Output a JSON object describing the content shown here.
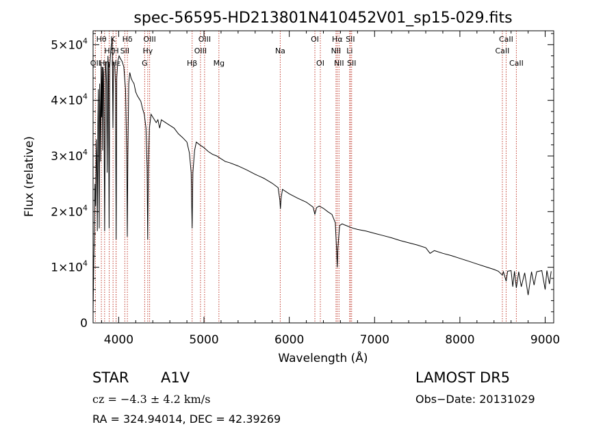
{
  "chart_data": {
    "type": "line",
    "title": "spec-56595-HD213801N410452V01_sp15-029.fits",
    "xlabel": "Wavelength (Å)",
    "ylabel": "Flux (relative)",
    "xlim": [
      3700,
      9100
    ],
    "ylim": [
      0,
      52500
    ],
    "xticks": [
      4000,
      5000,
      6000,
      7000,
      8000,
      9000
    ],
    "yticks": [
      {
        "value": 0,
        "mantissa": "0",
        "exponent": ""
      },
      {
        "value": 10000,
        "mantissa": "1×10",
        "exponent": "4"
      },
      {
        "value": 20000,
        "mantissa": "2×10",
        "exponent": "4"
      },
      {
        "value": 30000,
        "mantissa": "3×10",
        "exponent": "4"
      },
      {
        "value": 40000,
        "mantissa": "4×10",
        "exponent": "4"
      },
      {
        "value": 50000,
        "mantissa": "5×10",
        "exponent": "4"
      }
    ],
    "grid": false,
    "series": [
      {
        "color": "#000000",
        "points": [
          [
            3700,
            2000
          ],
          [
            3708,
            11000
          ],
          [
            3715,
            16000
          ],
          [
            3722,
            25000
          ],
          [
            3730,
            21000
          ],
          [
            3738,
            33000
          ],
          [
            3745,
            27000
          ],
          [
            3750,
            16500
          ],
          [
            3756,
            36000
          ],
          [
            3762,
            42000
          ],
          [
            3768,
            24000
          ],
          [
            3772,
            17000
          ],
          [
            3777,
            43000
          ],
          [
            3782,
            39000
          ],
          [
            3789,
            29000
          ],
          [
            3794,
            46500
          ],
          [
            3800,
            37000
          ],
          [
            3806,
            46000
          ],
          [
            3812,
            31000
          ],
          [
            3816,
            46000
          ],
          [
            3822,
            45000
          ],
          [
            3828,
            36000
          ],
          [
            3836,
            16500
          ],
          [
            3845,
            47000
          ],
          [
            3852,
            46000
          ],
          [
            3858,
            43000
          ],
          [
            3865,
            27000
          ],
          [
            3874,
            48000
          ],
          [
            3880,
            46000
          ],
          [
            3888,
            17000
          ],
          [
            3895,
            46000
          ],
          [
            3910,
            49500
          ],
          [
            3925,
            51000
          ],
          [
            3933,
            35000
          ],
          [
            3940,
            47000
          ],
          [
            3955,
            46000
          ],
          [
            3962,
            43000
          ],
          [
            3970,
            15000
          ],
          [
            3978,
            44000
          ],
          [
            3990,
            47000
          ],
          [
            4005,
            48000
          ],
          [
            4020,
            47500
          ],
          [
            4040,
            47000
          ],
          [
            4060,
            46000
          ],
          [
            4080,
            42000
          ],
          [
            4095,
            30000
          ],
          [
            4101,
            15500
          ],
          [
            4108,
            30000
          ],
          [
            4118,
            43000
          ],
          [
            4130,
            45000
          ],
          [
            4145,
            44000
          ],
          [
            4160,
            43500
          ],
          [
            4180,
            43000
          ],
          [
            4200,
            41500
          ],
          [
            4220,
            40800
          ],
          [
            4240,
            40300
          ],
          [
            4260,
            39800
          ],
          [
            4280,
            38500
          ],
          [
            4300,
            37500
          ],
          [
            4320,
            35000
          ],
          [
            4333,
            28000
          ],
          [
            4340,
            15000
          ],
          [
            4348,
            28000
          ],
          [
            4360,
            35000
          ],
          [
            4380,
            37500
          ],
          [
            4400,
            37000
          ],
          [
            4420,
            36500
          ],
          [
            4440,
            36000
          ],
          [
            4460,
            36500
          ],
          [
            4481,
            35000
          ],
          [
            4500,
            36500
          ],
          [
            4550,
            36000
          ],
          [
            4600,
            35500
          ],
          [
            4650,
            35000
          ],
          [
            4700,
            34000
          ],
          [
            4750,
            33300
          ],
          [
            4800,
            32500
          ],
          [
            4830,
            30500
          ],
          [
            4850,
            27000
          ],
          [
            4861,
            17000
          ],
          [
            4870,
            27000
          ],
          [
            4890,
            31000
          ],
          [
            4910,
            32500
          ],
          [
            4950,
            32000
          ],
          [
            5000,
            31500
          ],
          [
            5050,
            30800
          ],
          [
            5100,
            30300
          ],
          [
            5150,
            30000
          ],
          [
            5200,
            29500
          ],
          [
            5250,
            29000
          ],
          [
            5300,
            28800
          ],
          [
            5400,
            28200
          ],
          [
            5500,
            27500
          ],
          [
            5600,
            26700
          ],
          [
            5700,
            26000
          ],
          [
            5800,
            25100
          ],
          [
            5870,
            24300
          ],
          [
            5890,
            22000
          ],
          [
            5896,
            20500
          ],
          [
            5905,
            22500
          ],
          [
            5920,
            24000
          ],
          [
            6000,
            23200
          ],
          [
            6100,
            22400
          ],
          [
            6200,
            21700
          ],
          [
            6280,
            20800
          ],
          [
            6300,
            19500
          ],
          [
            6320,
            20700
          ],
          [
            6350,
            21000
          ],
          [
            6400,
            20600
          ],
          [
            6450,
            20000
          ],
          [
            6500,
            19500
          ],
          [
            6540,
            18000
          ],
          [
            6555,
            13000
          ],
          [
            6563,
            10000
          ],
          [
            6570,
            13500
          ],
          [
            6590,
            17500
          ],
          [
            6620,
            17800
          ],
          [
            6650,
            17600
          ],
          [
            6700,
            17300
          ],
          [
            6750,
            17000
          ],
          [
            6800,
            16800
          ],
          [
            6900,
            16500
          ],
          [
            7000,
            16100
          ],
          [
            7100,
            15700
          ],
          [
            7200,
            15300
          ],
          [
            7300,
            14800
          ],
          [
            7400,
            14400
          ],
          [
            7500,
            14000
          ],
          [
            7600,
            13500
          ],
          [
            7650,
            12500
          ],
          [
            7700,
            13000
          ],
          [
            7800,
            12500
          ],
          [
            7900,
            12100
          ],
          [
            8000,
            11600
          ],
          [
            8100,
            11100
          ],
          [
            8200,
            10600
          ],
          [
            8300,
            10100
          ],
          [
            8400,
            9600
          ],
          [
            8450,
            9300
          ],
          [
            8498,
            8600
          ],
          [
            8510,
            9200
          ],
          [
            8542,
            7500
          ],
          [
            8560,
            9300
          ],
          [
            8600,
            9400
          ],
          [
            8620,
            6500
          ],
          [
            8640,
            9300
          ],
          [
            8662,
            6300
          ],
          [
            8690,
            9200
          ],
          [
            8720,
            6500
          ],
          [
            8760,
            9000
          ],
          [
            8800,
            5000
          ],
          [
            8840,
            9200
          ],
          [
            8870,
            6800
          ],
          [
            8900,
            9200
          ],
          [
            8960,
            9400
          ],
          [
            9000,
            6000
          ],
          [
            9020,
            9400
          ],
          [
            9050,
            7000
          ],
          [
            9070,
            9300
          ]
        ]
      }
    ],
    "lines": [
      {
        "wl": 3727,
        "label": "OII",
        "row": 3
      },
      {
        "wl": 3797,
        "label": "Hθ",
        "row": 1
      },
      {
        "wl": 3835,
        "label": "Hη",
        "row": 3
      },
      {
        "wl": 3889,
        "label": "Hζ",
        "row": 2
      },
      {
        "wl": 3934,
        "label": "K",
        "row": 1
      },
      {
        "wl": 3969,
        "label": "H",
        "row": 2
      },
      {
        "wl": 3970,
        "label": "Hε",
        "row": 3
      },
      {
        "wl": 4072,
        "label": "SII",
        "row": 2
      },
      {
        "wl": 4102,
        "label": "Hδ",
        "row": 1
      },
      {
        "wl": 4305,
        "label": "G",
        "row": 3
      },
      {
        "wl": 4341,
        "label": "Hγ",
        "row": 2
      },
      {
        "wl": 4363,
        "label": "OIII",
        "row": 1
      },
      {
        "wl": 4861,
        "label": "Hβ",
        "row": 3
      },
      {
        "wl": 4959,
        "label": "OIII",
        "row": 2
      },
      {
        "wl": 5007,
        "label": "OIII",
        "row": 1
      },
      {
        "wl": 5175,
        "label": "Mg",
        "row": 3
      },
      {
        "wl": 5894,
        "label": "Na",
        "row": 2
      },
      {
        "wl": 6300,
        "label": "OI",
        "row": 1
      },
      {
        "wl": 6364,
        "label": "OI",
        "row": 3
      },
      {
        "wl": 6548,
        "label": "NII",
        "row": 2
      },
      {
        "wl": 6563,
        "label": "Hα",
        "row": 1
      },
      {
        "wl": 6583,
        "label": "NII",
        "row": 3
      },
      {
        "wl": 6708,
        "label": "Li",
        "row": 2
      },
      {
        "wl": 6716,
        "label": "SII",
        "row": 1
      },
      {
        "wl": 6731,
        "label": "SII",
        "row": 3
      },
      {
        "wl": 8498,
        "label": "CaII",
        "row": 2
      },
      {
        "wl": 8542,
        "label": "CaII",
        "row": 1
      },
      {
        "wl": 8662,
        "label": "CaII",
        "row": 3
      }
    ]
  },
  "info": {
    "class_label": "STAR",
    "subclass": "A1V",
    "cz": "cz = −4.3 ± 4.2 km/s",
    "coords": "RA = 324.94014, DEC =  42.39269",
    "survey": "LAMOST DR5",
    "obs_date": "Obs−Date: 20131029"
  }
}
